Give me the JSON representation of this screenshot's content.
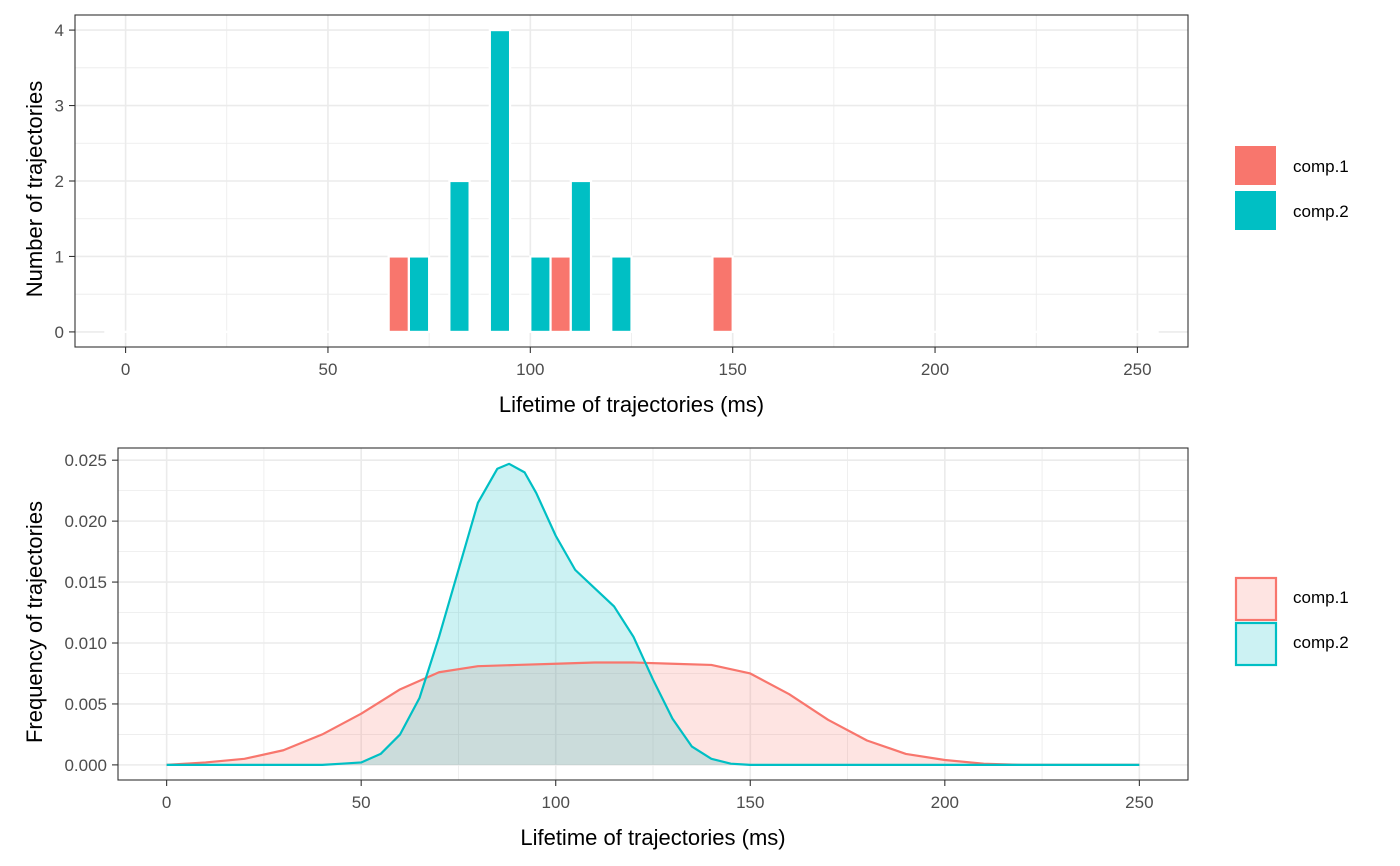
{
  "chart_data": [
    {
      "type": "bar",
      "xlabel": "Lifetime of trajectories (ms)",
      "ylabel": "Number of trajectories",
      "xlim": [
        -12.5,
        262.5
      ],
      "ylim": [
        -0.2,
        4.2
      ],
      "x_ticks": [
        0,
        50,
        100,
        150,
        200,
        250
      ],
      "y_ticks": [
        0,
        1,
        2,
        3,
        4
      ],
      "grid": true,
      "legend_position": "right",
      "bin_width": 10,
      "x": [
        0,
        10,
        20,
        30,
        40,
        50,
        60,
        70,
        80,
        90,
        100,
        110,
        120,
        130,
        140,
        150,
        160,
        170,
        180,
        190,
        200,
        210,
        220,
        230,
        240,
        250
      ],
      "series": [
        {
          "name": "comp.1",
          "color": "#F8766D",
          "values": [
            0,
            0,
            0,
            0,
            0,
            0,
            0,
            1,
            0,
            0,
            0,
            1,
            0,
            0,
            0,
            1,
            0,
            0,
            0,
            0,
            0,
            0,
            0,
            0,
            0,
            0
          ]
        },
        {
          "name": "comp.2",
          "color": "#00BFC4",
          "values": [
            0,
            0,
            0,
            0,
            0,
            0,
            0,
            1,
            2,
            4,
            1,
            2,
            1,
            0,
            0,
            0,
            0,
            0,
            0,
            0,
            0,
            0,
            0,
            0,
            0,
            0
          ]
        }
      ]
    },
    {
      "type": "area",
      "xlabel": "Lifetime of trajectories (ms)",
      "ylabel": "Frequency of trajectories",
      "xlim": [
        -12.5,
        262.5
      ],
      "ylim": [
        -0.00124,
        0.026
      ],
      "x_ticks": [
        0,
        50,
        100,
        150,
        200,
        250
      ],
      "y_ticks": [
        0.0,
        0.005,
        0.01,
        0.015,
        0.02,
        0.025
      ],
      "y_tick_labels": [
        "0.000",
        "0.005",
        "0.010",
        "0.015",
        "0.020",
        "0.025"
      ],
      "grid": true,
      "legend_position": "right",
      "series": [
        {
          "name": "comp.1",
          "color": "#F8766D",
          "x": [
            0,
            10,
            20,
            30,
            40,
            50,
            60,
            70,
            80,
            90,
            100,
            110,
            120,
            130,
            140,
            150,
            160,
            170,
            180,
            190,
            200,
            210,
            220,
            230,
            240,
            250
          ],
          "values": [
            0.0,
            0.0002,
            0.0005,
            0.0012,
            0.0025,
            0.0042,
            0.0062,
            0.0076,
            0.0081,
            0.0082,
            0.0083,
            0.0084,
            0.0084,
            0.0083,
            0.0082,
            0.0075,
            0.0058,
            0.0037,
            0.002,
            0.0009,
            0.0004,
            0.0001,
            0.0,
            0.0,
            0.0,
            0.0
          ]
        },
        {
          "name": "comp.2",
          "color": "#00BFC4",
          "x": [
            0,
            30,
            40,
            45,
            50,
            55,
            60,
            65,
            70,
            75,
            80,
            85,
            88,
            92,
            95,
            100,
            105,
            110,
            115,
            120,
            125,
            130,
            135,
            140,
            145,
            150,
            160,
            200,
            250
          ],
          "values": [
            0.0,
            0.0,
            0.0,
            0.0001,
            0.0002,
            0.0009,
            0.0025,
            0.0055,
            0.0105,
            0.016,
            0.0215,
            0.0243,
            0.0247,
            0.024,
            0.0223,
            0.0188,
            0.016,
            0.0145,
            0.013,
            0.0105,
            0.007,
            0.0038,
            0.0015,
            0.0005,
            0.0001,
            0.0,
            0.0,
            0.0,
            0.0
          ]
        }
      ]
    }
  ]
}
